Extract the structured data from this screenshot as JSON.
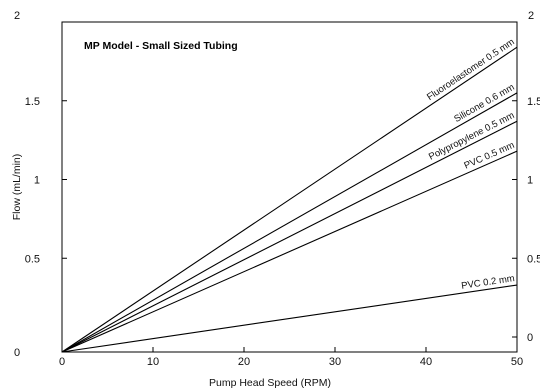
{
  "chart_data": {
    "type": "line",
    "title": "MP Model - Small Sized Tubing",
    "xlabel": "Pump Head Speed (RPM)",
    "ylabel": "Flow (mL/min)",
    "xlim": [
      0,
      50
    ],
    "ylim": [
      0,
      2
    ],
    "x_ticks": [
      "0",
      "10",
      "20",
      "30",
      "40",
      "50"
    ],
    "y_ticks_left": [
      "0",
      "0.5",
      "1",
      "1.5",
      "2"
    ],
    "y_ticks_right": [
      "0",
      "0.5",
      "1",
      "1.5",
      "2"
    ],
    "grid": false,
    "series": [
      {
        "name": "Fluoroelastomer 0.5 mm",
        "x": [
          0,
          50
        ],
        "y": [
          0,
          1.84
        ]
      },
      {
        "name": "Silicone 0.6 mm",
        "x": [
          0,
          50
        ],
        "y": [
          0,
          1.55
        ]
      },
      {
        "name": "Polypropylene 0.5 mm",
        "x": [
          0,
          50
        ],
        "y": [
          0,
          1.37
        ]
      },
      {
        "name": "PVC 0.5 mm",
        "x": [
          0,
          50
        ],
        "y": [
          0,
          1.18
        ]
      },
      {
        "name": "PVC 0.2 mm",
        "x": [
          0,
          50
        ],
        "y": [
          0,
          0.33
        ]
      }
    ]
  }
}
